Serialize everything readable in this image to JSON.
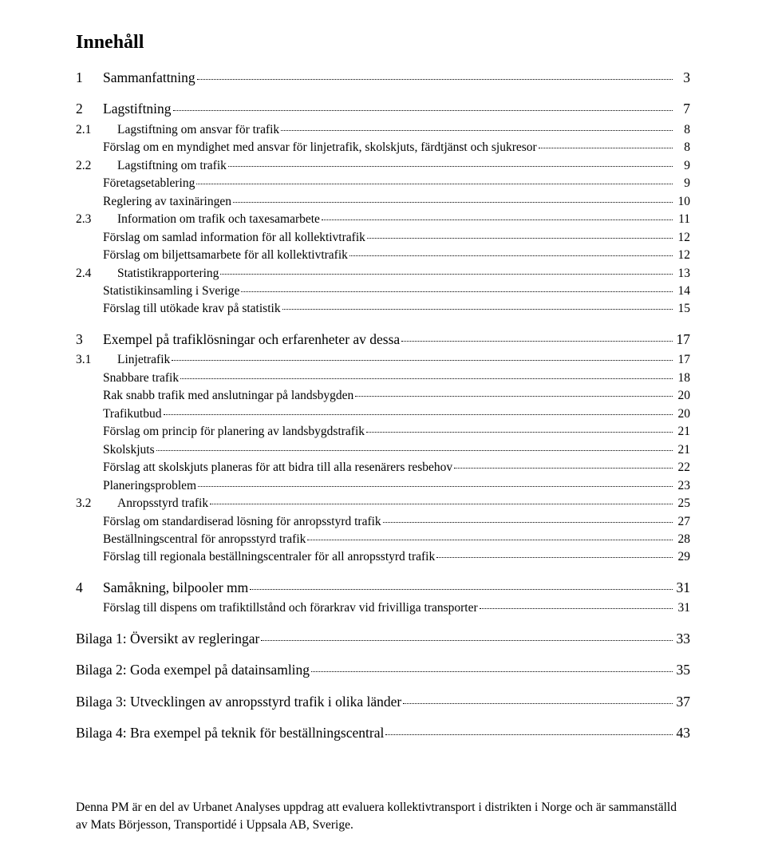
{
  "title": "Innehåll",
  "entries": [
    {
      "level": 1,
      "num": "1",
      "label": "Sammanfattning",
      "page": "3"
    },
    {
      "level": 1,
      "num": "2",
      "label": "Lagstiftning",
      "page": "7"
    },
    {
      "level": 2,
      "num": "2.1",
      "label": "Lagstiftning om ansvar för trafik",
      "page": "8"
    },
    {
      "level": 3,
      "num": "",
      "label": "Förslag om en myndighet med ansvar för linjetrafik, skolskjuts, färdtjänst och sjukresor",
      "page": "8"
    },
    {
      "level": 2,
      "num": "2.2",
      "label": "Lagstiftning om trafik",
      "page": "9"
    },
    {
      "level": 3,
      "num": "",
      "label": "Företagsetablering",
      "page": "9"
    },
    {
      "level": 3,
      "num": "",
      "label": "Reglering av taxinäringen",
      "page": "10"
    },
    {
      "level": 2,
      "num": "2.3",
      "label": "Information om trafik och taxesamarbete",
      "page": "11"
    },
    {
      "level": 3,
      "num": "",
      "label": "Förslag om samlad information för all kollektivtrafik",
      "page": "12"
    },
    {
      "level": 3,
      "num": "",
      "label": "Förslag om biljettsamarbete för all kollektivtrafik",
      "page": "12"
    },
    {
      "level": 2,
      "num": "2.4",
      "label": "Statistikrapportering",
      "page": "13"
    },
    {
      "level": 3,
      "num": "",
      "label": "Statistikinsamling i Sverige",
      "page": "14"
    },
    {
      "level": 3,
      "num": "",
      "label": "Förslag till utökade krav på statistik",
      "page": "15"
    },
    {
      "level": 1,
      "num": "3",
      "label": "Exempel på trafiklösningar och erfarenheter av dessa",
      "page": "17"
    },
    {
      "level": 2,
      "num": "3.1",
      "label": "Linjetrafik",
      "page": "17"
    },
    {
      "level": 3,
      "num": "",
      "label": "Snabbare trafik",
      "page": "18"
    },
    {
      "level": 3,
      "num": "",
      "label": "Rak snabb trafik med anslutningar på landsbygden",
      "page": "20"
    },
    {
      "level": 3,
      "num": "",
      "label": "Trafikutbud",
      "page": "20"
    },
    {
      "level": 3,
      "num": "",
      "label": "Förslag om princip för planering av landsbygdstrafik",
      "page": "21"
    },
    {
      "level": 3,
      "num": "",
      "label": "Skolskjuts",
      "page": "21"
    },
    {
      "level": 3,
      "num": "",
      "label": "Förslag att skolskjuts planeras för att bidra till alla resenärers resbehov",
      "page": "22"
    },
    {
      "level": 3,
      "num": "",
      "label": "Planeringsproblem",
      "page": "23"
    },
    {
      "level": 2,
      "num": "3.2",
      "label": "Anropsstyrd trafik",
      "page": "25"
    },
    {
      "level": 3,
      "num": "",
      "label": "Förslag om standardiserad lösning för anropsstyrd trafik",
      "page": "27"
    },
    {
      "level": 3,
      "num": "",
      "label": "Beställningscentral för anropsstyrd trafik",
      "page": "28"
    },
    {
      "level": 3,
      "num": "",
      "label": "Förslag till regionala beställningscentraler för all anropsstyrd trafik",
      "page": "29"
    },
    {
      "level": 1,
      "num": "4",
      "label": "Samåkning, bilpooler mm",
      "page": "31"
    },
    {
      "level": 3,
      "num": "",
      "label": "Förslag till dispens om trafiktillstånd och förarkrav vid frivilliga transporter",
      "page": "31"
    },
    {
      "level": 1,
      "num": "",
      "label": "Bilaga 1: Översikt av regleringar",
      "page": "33"
    },
    {
      "level": 1,
      "num": "",
      "label": "Bilaga 2: Goda exempel på datainsamling",
      "page": "35"
    },
    {
      "level": 1,
      "num": "",
      "label": "Bilaga 3: Utvecklingen av anropsstyrd trafik i olika länder",
      "page": "37"
    },
    {
      "level": 1,
      "num": "",
      "label": "Bilaga 4: Bra exempel på teknik för beställningscentral",
      "page": "43"
    }
  ],
  "footnote": "Denna PM är en del av Urbanet Analyses uppdrag att evaluera kollektivtransport i distrikten i Norge och är sammanställd av Mats Börjesson, Transportidé i Uppsala AB, Sverige."
}
